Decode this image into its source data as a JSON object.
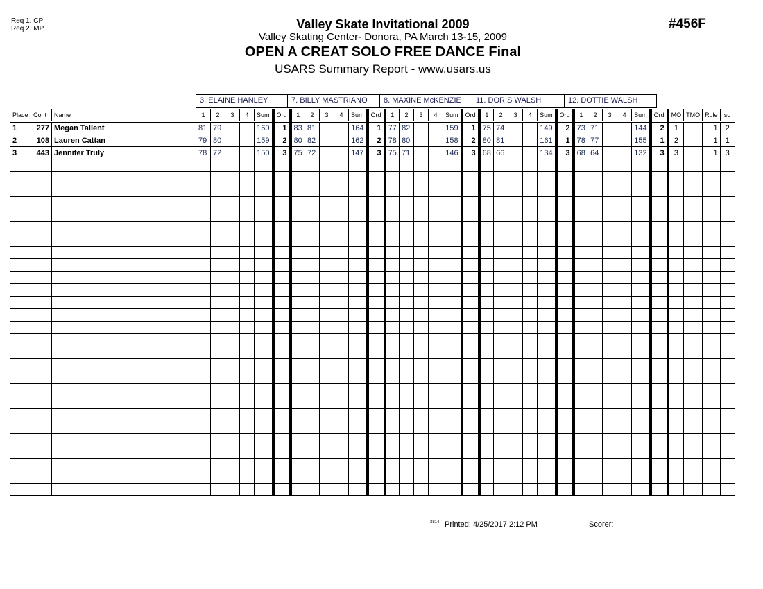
{
  "requirements": [
    "Req  1.  CP",
    "Req  2.  MP"
  ],
  "title": "Valley Skate Invitational 2009",
  "venue": "Valley Skating Center- Donora, PA  March 13-15, 2009",
  "event": "OPEN A CREAT SOLO FREE DANCE Final",
  "report": "USARS Summary Report - www.usars.us",
  "code": "#456F",
  "judges": [
    "3.  ELAINE HANLEY",
    "7.  BILLY MASTRIANO",
    "8.  MAXINE McKENZIE",
    "11.  DORIS WALSH",
    "12.  DOTTIE WALSH"
  ],
  "columns": {
    "place": "Place",
    "cont": "Cont",
    "name": "Name",
    "judge_cols": [
      "1",
      "2",
      "3",
      "4",
      "Sum",
      "Ord"
    ],
    "mo": "MO",
    "tmo": "TMO",
    "rule": "Rule",
    "so": "so"
  },
  "rows": [
    {
      "place": "1",
      "cont": "277",
      "name": "Megan Tallent",
      "scores": [
        [
          "81",
          "79",
          "",
          "",
          "160",
          "1"
        ],
        [
          "83",
          "81",
          "",
          "",
          "164",
          "1"
        ],
        [
          "77",
          "82",
          "",
          "",
          "159",
          "1"
        ],
        [
          "75",
          "74",
          "",
          "",
          "149",
          "2"
        ],
        [
          "73",
          "71",
          "",
          "",
          "144",
          "2"
        ]
      ],
      "mo": "1",
      "tmo": "",
      "rule": "1",
      "so": "2"
    },
    {
      "place": "2",
      "cont": "108",
      "name": "Lauren Cattan",
      "scores": [
        [
          "79",
          "80",
          "",
          "",
          "159",
          "2"
        ],
        [
          "80",
          "82",
          "",
          "",
          "162",
          "2"
        ],
        [
          "78",
          "80",
          "",
          "",
          "158",
          "2"
        ],
        [
          "80",
          "81",
          "",
          "",
          "161",
          "1"
        ],
        [
          "78",
          "77",
          "",
          "",
          "155",
          "1"
        ]
      ],
      "mo": "2",
      "tmo": "",
      "rule": "1",
      "so": "1"
    },
    {
      "place": "3",
      "cont": "443",
      "name": "Jennifer Truly",
      "scores": [
        [
          "78",
          "72",
          "",
          "",
          "150",
          "3"
        ],
        [
          "75",
          "72",
          "",
          "",
          "147",
          "3"
        ],
        [
          "75",
          "71",
          "",
          "",
          "146",
          "3"
        ],
        [
          "68",
          "66",
          "",
          "",
          "134",
          "3"
        ],
        [
          "68",
          "64",
          "",
          "",
          "132",
          "3"
        ]
      ],
      "mo": "3",
      "tmo": "",
      "rule": "1",
      "so": "3"
    }
  ],
  "footer": {
    "small": "3814",
    "printed": "Printed:  4/25/2017  2:12 PM",
    "scorer": "Scorer:"
  }
}
